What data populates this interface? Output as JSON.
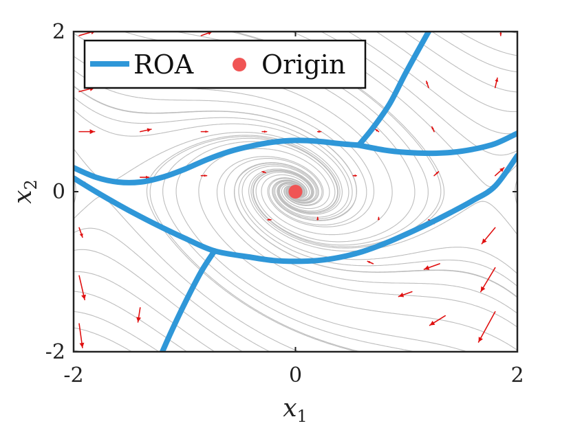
{
  "chart_data": {
    "type": "line",
    "xlabel": "x",
    "xlabel_sub": "1",
    "ylabel": "x",
    "ylabel_sub": "2",
    "xlim": [
      -2,
      2
    ],
    "ylim": [
      -2,
      2
    ],
    "xticks": [
      -2,
      0,
      2
    ],
    "yticks": [
      -2,
      0,
      2
    ],
    "xtick_labels": [
      "-2",
      "0",
      "2"
    ],
    "ytick_labels": [
      "-2",
      "0",
      "2"
    ],
    "grid": false,
    "legend_position": "top-left",
    "colors": {
      "roa": "#2f97d8",
      "origin": "#f05555",
      "streamline": "#bdbdbd",
      "arrow": "#e01010"
    },
    "series": [
      {
        "name": "ROA",
        "kind": "line",
        "segments": [
          [
            [
              -2.0,
              0.3
            ],
            [
              -1.8,
              0.18
            ],
            [
              -1.6,
              0.12
            ],
            [
              -1.4,
              0.12
            ],
            [
              -1.2,
              0.18
            ],
            [
              -1.0,
              0.28
            ],
            [
              -0.8,
              0.4
            ],
            [
              -0.6,
              0.5
            ],
            [
              -0.4,
              0.57
            ],
            [
              -0.2,
              0.62
            ],
            [
              0.0,
              0.64
            ],
            [
              0.2,
              0.63
            ],
            [
              0.4,
              0.6
            ],
            [
              0.57,
              0.58
            ]
          ],
          [
            [
              0.57,
              0.58
            ],
            [
              0.8,
              0.52
            ],
            [
              1.0,
              0.49
            ],
            [
              1.2,
              0.48
            ],
            [
              1.4,
              0.49
            ],
            [
              1.6,
              0.53
            ],
            [
              1.8,
              0.6
            ],
            [
              2.0,
              0.73
            ]
          ],
          [
            [
              0.57,
              0.58
            ],
            [
              0.7,
              0.8
            ],
            [
              0.85,
              1.1
            ],
            [
              1.0,
              1.5
            ],
            [
              1.2,
              2.0
            ]
          ],
          [
            [
              -2.0,
              0.17
            ],
            [
              -1.8,
              0.0
            ],
            [
              -1.6,
              -0.16
            ],
            [
              -1.4,
              -0.31
            ],
            [
              -1.2,
              -0.45
            ],
            [
              -1.0,
              -0.58
            ],
            [
              -0.73,
              -0.74
            ],
            [
              -0.4,
              -0.82
            ],
            [
              -0.2,
              -0.86
            ],
            [
              0.0,
              -0.87
            ],
            [
              0.2,
              -0.86
            ],
            [
              0.4,
              -0.82
            ],
            [
              0.6,
              -0.75
            ],
            [
              0.8,
              -0.65
            ],
            [
              1.0,
              -0.53
            ],
            [
              1.2,
              -0.4
            ],
            [
              1.4,
              -0.26
            ],
            [
              1.6,
              -0.11
            ],
            [
              1.8,
              0.07
            ],
            [
              2.0,
              0.45
            ]
          ],
          [
            [
              -0.73,
              -0.74
            ],
            [
              -0.85,
              -1.0
            ],
            [
              -1.0,
              -1.4
            ],
            [
              -1.12,
              -1.75
            ],
            [
              -1.2,
              -2.0
            ]
          ]
        ]
      },
      {
        "name": "Origin",
        "kind": "scatter",
        "points": [
          [
            0,
            0
          ]
        ]
      }
    ],
    "vector_field": [
      {
        "x": -1.95,
        "y": 1.95,
        "dx": 0.15,
        "dy": 0.06
      },
      {
        "x": -1.95,
        "y": 1.25,
        "dx": 0.14,
        "dy": 0.05
      },
      {
        "x": -1.95,
        "y": 0.75,
        "dx": 0.14,
        "dy": 0.0
      },
      {
        "x": -1.95,
        "y": 0.15,
        "dx": 0.07,
        "dy": -0.06
      },
      {
        "x": -1.95,
        "y": -0.45,
        "dx": 0.03,
        "dy": -0.12
      },
      {
        "x": -1.95,
        "y": -1.05,
        "dx": 0.05,
        "dy": -0.3
      },
      {
        "x": -1.95,
        "y": -1.65,
        "dx": 0.03,
        "dy": -0.3
      },
      {
        "x": -1.45,
        "y": 1.6,
        "dx": 0.1,
        "dy": 0.02
      },
      {
        "x": -1.4,
        "y": 0.75,
        "dx": 0.1,
        "dy": 0.03
      },
      {
        "x": -1.4,
        "y": 0.18,
        "dx": 0.08,
        "dy": 0.0
      },
      {
        "x": -1.4,
        "y": -1.45,
        "dx": -0.02,
        "dy": -0.18
      },
      {
        "x": -0.85,
        "y": 1.95,
        "dx": 0.1,
        "dy": 0.05
      },
      {
        "x": -0.85,
        "y": 0.75,
        "dx": 0.06,
        "dy": 0.0
      },
      {
        "x": -0.85,
        "y": 0.2,
        "dx": 0.05,
        "dy": 0.0
      },
      {
        "x": -0.3,
        "y": 0.75,
        "dx": 0.04,
        "dy": 0.0
      },
      {
        "x": -0.3,
        "y": 0.25,
        "dx": 0.03,
        "dy": -0.01
      },
      {
        "x": -0.25,
        "y": -0.35,
        "dx": 0.03,
        "dy": 0.0
      },
      {
        "x": 0.2,
        "y": 0.75,
        "dx": 0.03,
        "dy": 0.0
      },
      {
        "x": 0.2,
        "y": -0.35,
        "dx": 0.0,
        "dy": 0.03
      },
      {
        "x": 0.45,
        "y": 1.45,
        "dx": 0.02,
        "dy": 0.05
      },
      {
        "x": 0.55,
        "y": 0.2,
        "dx": -0.03,
        "dy": 0.0
      },
      {
        "x": 0.75,
        "y": -0.35,
        "dx": 0.0,
        "dy": 0.03
      },
      {
        "x": 0.7,
        "y": -0.9,
        "dx": -0.05,
        "dy": 0.03
      },
      {
        "x": 0.75,
        "y": 0.75,
        "dx": -0.03,
        "dy": 0.03
      },
      {
        "x": 1.05,
        "y": -1.25,
        "dx": -0.12,
        "dy": -0.06
      },
      {
        "x": 1.2,
        "y": 1.3,
        "dx": -0.02,
        "dy": 0.08
      },
      {
        "x": 1.25,
        "y": 0.75,
        "dx": -0.02,
        "dy": 0.06
      },
      {
        "x": 1.25,
        "y": 0.2,
        "dx": 0.04,
        "dy": 0.05
      },
      {
        "x": 1.25,
        "y": -0.4,
        "dx": -0.05,
        "dy": 0.05
      },
      {
        "x": 1.3,
        "y": -0.9,
        "dx": -0.14,
        "dy": -0.07
      },
      {
        "x": 1.35,
        "y": -1.55,
        "dx": -0.14,
        "dy": -0.12
      },
      {
        "x": 1.85,
        "y": 1.95,
        "dx": 0.0,
        "dy": 0.05
      },
      {
        "x": 1.8,
        "y": 1.3,
        "dx": 0.02,
        "dy": 0.12
      },
      {
        "x": 1.8,
        "y": 0.2,
        "dx": 0.08,
        "dy": 0.1
      },
      {
        "x": 1.8,
        "y": -0.45,
        "dx": -0.12,
        "dy": -0.2
      },
      {
        "x": 1.8,
        "y": -0.95,
        "dx": -0.13,
        "dy": -0.3
      },
      {
        "x": 1.8,
        "y": -1.5,
        "dx": -0.15,
        "dy": -0.38
      }
    ]
  }
}
